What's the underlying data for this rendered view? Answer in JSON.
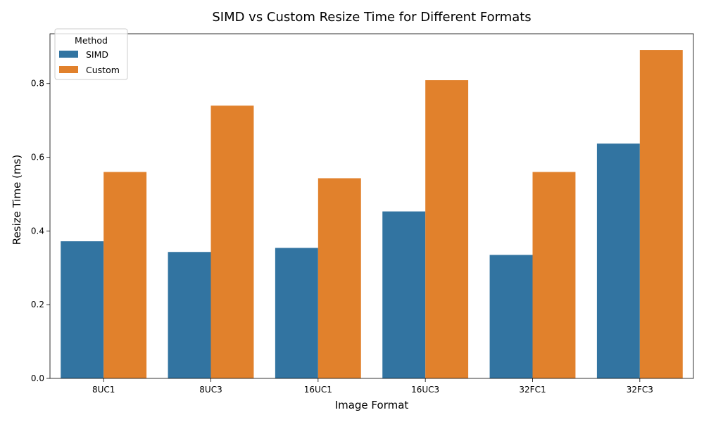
{
  "chart_data": {
    "type": "bar",
    "title": "SIMD vs Custom Resize Time for Different Formats",
    "xlabel": "Image Format",
    "ylabel": "Resize Time (ms)",
    "categories": [
      "8UC1",
      "8UC3",
      "16UC1",
      "16UC3",
      "32FC1",
      "32FC3"
    ],
    "series": [
      {
        "name": "SIMD",
        "color": "#3274a1",
        "values": [
          0.372,
          0.343,
          0.354,
          0.453,
          0.335,
          0.637
        ]
      },
      {
        "name": "Custom",
        "color": "#e1812c",
        "values": [
          0.56,
          0.74,
          0.543,
          0.809,
          0.56,
          0.891
        ]
      }
    ],
    "ylim": [
      0,
      0.935
    ],
    "yticks": [
      0.0,
      0.2,
      0.4,
      0.6,
      0.8
    ],
    "ytick_labels": [
      "0.0",
      "0.2",
      "0.4",
      "0.6",
      "0.8"
    ],
    "legend": {
      "title": "Method",
      "position": "top-left"
    },
    "grid": false
  }
}
